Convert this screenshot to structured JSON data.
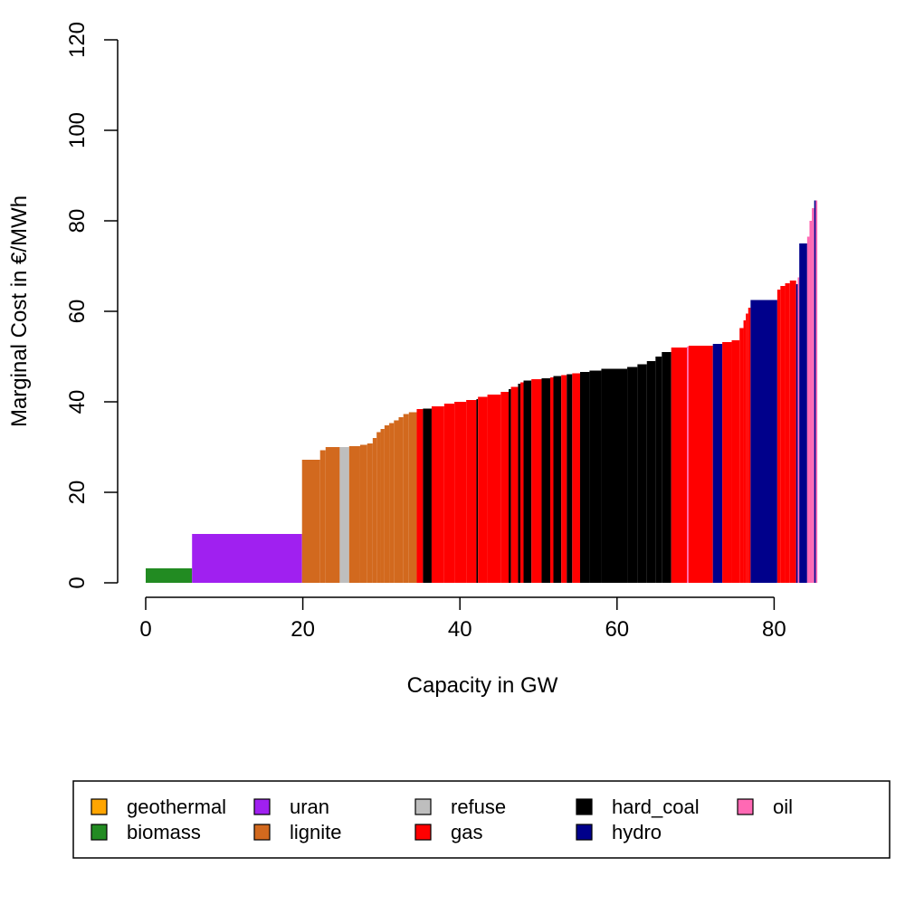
{
  "chart_data": {
    "type": "bar",
    "xlabel": "Capacity in GW",
    "ylabel": "Marginal Cost in €/MWh",
    "xlim": [
      0,
      85.7
    ],
    "ylim": [
      0,
      120
    ],
    "x_ticks": [
      0,
      20,
      40,
      60,
      80
    ],
    "y_ticks": [
      0,
      20,
      40,
      60,
      80,
      100,
      120
    ],
    "grid": false,
    "legend": {
      "placement": "bottom",
      "entries": [
        {
          "name": "geothermal",
          "color": "#FFA500"
        },
        {
          "name": "biomass",
          "color": "#228B22"
        },
        {
          "name": "uran",
          "color": "#A020F0"
        },
        {
          "name": "lignite",
          "color": "#D2691E"
        },
        {
          "name": "refuse",
          "color": "#BEBEBE"
        },
        {
          "name": "gas",
          "color": "#FF0000"
        },
        {
          "name": "hard_coal",
          "color": "#000000"
        },
        {
          "name": "hydro",
          "color": "#00008B"
        },
        {
          "name": "oil",
          "color": "#FF69B4"
        }
      ]
    },
    "segments": [
      {
        "type": "biomass",
        "x0": 0,
        "x1": 5.9,
        "cost": 3.2
      },
      {
        "type": "uran",
        "x0": 5.9,
        "x1": 19.9,
        "cost": 10.8
      },
      {
        "type": "lignite",
        "x0": 19.9,
        "x1": 22.2,
        "cost": 27.2
      },
      {
        "type": "lignite",
        "x0": 22.2,
        "x1": 22.9,
        "cost": 29.3
      },
      {
        "type": "lignite",
        "x0": 22.9,
        "x1": 24.7,
        "cost": 30.0
      },
      {
        "type": "refuse",
        "x0": 24.7,
        "x1": 25.9,
        "cost": 30.0
      },
      {
        "type": "lignite",
        "x0": 25.9,
        "x1": 27.3,
        "cost": 30.2
      },
      {
        "type": "lignite",
        "x0": 27.3,
        "x1": 28.2,
        "cost": 30.5
      },
      {
        "type": "lignite",
        "x0": 28.2,
        "x1": 28.9,
        "cost": 30.8
      },
      {
        "type": "lignite",
        "x0": 28.9,
        "x1": 29.4,
        "cost": 32.0
      },
      {
        "type": "lignite",
        "x0": 29.4,
        "x1": 29.9,
        "cost": 33.3
      },
      {
        "type": "lignite",
        "x0": 29.9,
        "x1": 30.4,
        "cost": 34.0
      },
      {
        "type": "lignite",
        "x0": 30.4,
        "x1": 31.0,
        "cost": 34.8
      },
      {
        "type": "lignite",
        "x0": 31.0,
        "x1": 31.6,
        "cost": 35.3
      },
      {
        "type": "lignite",
        "x0": 31.6,
        "x1": 32.2,
        "cost": 35.9
      },
      {
        "type": "lignite",
        "x0": 32.2,
        "x1": 32.8,
        "cost": 36.6
      },
      {
        "type": "lignite",
        "x0": 32.8,
        "x1": 33.5,
        "cost": 37.3
      },
      {
        "type": "lignite",
        "x0": 33.5,
        "x1": 34.5,
        "cost": 37.7
      },
      {
        "type": "gas",
        "x0": 34.5,
        "x1": 35.3,
        "cost": 38.4
      },
      {
        "type": "hard_coal",
        "x0": 35.3,
        "x1": 36.4,
        "cost": 38.5
      },
      {
        "type": "gas",
        "x0": 36.4,
        "x1": 38.0,
        "cost": 39.0
      },
      {
        "type": "gas",
        "x0": 38.0,
        "x1": 39.3,
        "cost": 39.6
      },
      {
        "type": "gas",
        "x0": 39.3,
        "x1": 40.8,
        "cost": 40.0
      },
      {
        "type": "gas",
        "x0": 40.8,
        "x1": 42.1,
        "cost": 40.4
      },
      {
        "type": "hard_coal",
        "x0": 42.1,
        "x1": 42.3,
        "cost": 40.6
      },
      {
        "type": "gas",
        "x0": 42.3,
        "x1": 43.5,
        "cost": 41.1
      },
      {
        "type": "gas",
        "x0": 43.5,
        "x1": 45.2,
        "cost": 41.6
      },
      {
        "type": "gas",
        "x0": 45.2,
        "x1": 46.2,
        "cost": 42.2
      },
      {
        "type": "hard_coal",
        "x0": 46.2,
        "x1": 46.5,
        "cost": 42.8
      },
      {
        "type": "gas",
        "x0": 46.5,
        "x1": 47.4,
        "cost": 43.3
      },
      {
        "type": "hard_coal",
        "x0": 47.4,
        "x1": 47.7,
        "cost": 44.0
      },
      {
        "type": "gas",
        "x0": 47.7,
        "x1": 48.1,
        "cost": 44.3
      },
      {
        "type": "hard_coal",
        "x0": 48.1,
        "x1": 49.1,
        "cost": 44.7
      },
      {
        "type": "gas",
        "x0": 49.1,
        "x1": 50.4,
        "cost": 45.0
      },
      {
        "type": "hard_coal",
        "x0": 50.4,
        "x1": 51.5,
        "cost": 45.2
      },
      {
        "type": "gas",
        "x0": 51.5,
        "x1": 51.9,
        "cost": 45.4
      },
      {
        "type": "hard_coal",
        "x0": 51.9,
        "x1": 52.9,
        "cost": 45.7
      },
      {
        "type": "gas",
        "x0": 52.9,
        "x1": 53.6,
        "cost": 45.9
      },
      {
        "type": "hard_coal",
        "x0": 53.6,
        "x1": 54.3,
        "cost": 46.1
      },
      {
        "type": "gas",
        "x0": 54.3,
        "x1": 55.3,
        "cost": 46.3
      },
      {
        "type": "hard_coal",
        "x0": 55.3,
        "x1": 56.5,
        "cost": 46.6
      },
      {
        "type": "hard_coal",
        "x0": 56.5,
        "x1": 58.0,
        "cost": 46.9
      },
      {
        "type": "hard_coal",
        "x0": 58.0,
        "x1": 61.3,
        "cost": 47.3
      },
      {
        "type": "hard_coal",
        "x0": 61.3,
        "x1": 62.6,
        "cost": 47.7
      },
      {
        "type": "hard_coal",
        "x0": 62.6,
        "x1": 63.8,
        "cost": 48.3
      },
      {
        "type": "hard_coal",
        "x0": 63.8,
        "x1": 64.9,
        "cost": 49.0
      },
      {
        "type": "hard_coal",
        "x0": 64.9,
        "x1": 65.7,
        "cost": 50.0
      },
      {
        "type": "hard_coal",
        "x0": 65.7,
        "x1": 66.9,
        "cost": 51.0
      },
      {
        "type": "gas",
        "x0": 66.9,
        "x1": 68.9,
        "cost": 52.0
      },
      {
        "type": "oil",
        "x0": 68.9,
        "x1": 69.1,
        "cost": 52.2
      },
      {
        "type": "gas",
        "x0": 69.1,
        "x1": 72.2,
        "cost": 52.4
      },
      {
        "type": "hydro",
        "x0": 72.2,
        "x1": 73.4,
        "cost": 52.8
      },
      {
        "type": "gas",
        "x0": 73.4,
        "x1": 74.6,
        "cost": 53.2
      },
      {
        "type": "gas",
        "x0": 74.6,
        "x1": 75.6,
        "cost": 53.6
      },
      {
        "type": "gas",
        "x0": 75.6,
        "x1": 76.1,
        "cost": 56.3
      },
      {
        "type": "gas",
        "x0": 76.1,
        "x1": 76.4,
        "cost": 58.0
      },
      {
        "type": "gas",
        "x0": 76.4,
        "x1": 76.7,
        "cost": 59.5
      },
      {
        "type": "gas",
        "x0": 76.7,
        "x1": 77.0,
        "cost": 60.8
      },
      {
        "type": "hydro",
        "x0": 77.0,
        "x1": 80.4,
        "cost": 62.5
      },
      {
        "type": "gas",
        "x0": 80.4,
        "x1": 80.8,
        "cost": 64.8
      },
      {
        "type": "gas",
        "x0": 80.8,
        "x1": 81.4,
        "cost": 65.6
      },
      {
        "type": "gas",
        "x0": 81.4,
        "x1": 82.0,
        "cost": 66.2
      },
      {
        "type": "gas",
        "x0": 82.0,
        "x1": 82.8,
        "cost": 66.8
      },
      {
        "type": "hydro",
        "x0": 82.8,
        "x1": 83.0,
        "cost": 66.0
      },
      {
        "type": "oil",
        "x0": 83.0,
        "x1": 83.2,
        "cost": 67.5
      },
      {
        "type": "hydro",
        "x0": 83.2,
        "x1": 84.2,
        "cost": 75.0
      },
      {
        "type": "oil",
        "x0": 84.2,
        "x1": 84.5,
        "cost": 76.5
      },
      {
        "type": "oil",
        "x0": 84.5,
        "x1": 84.8,
        "cost": 80.0
      },
      {
        "type": "oil",
        "x0": 84.8,
        "x1": 85.1,
        "cost": 82.8
      },
      {
        "type": "hydro",
        "x0": 85.1,
        "x1": 85.3,
        "cost": 84.5
      },
      {
        "type": "oil",
        "x0": 85.3,
        "x1": 85.5,
        "cost": 84.5
      }
    ]
  }
}
